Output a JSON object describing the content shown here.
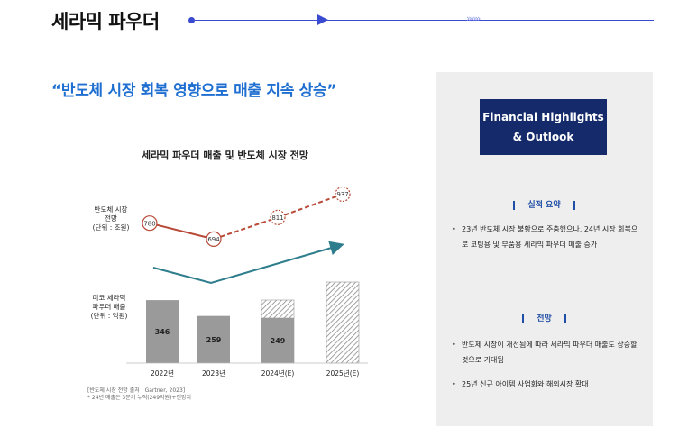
{
  "header": {
    "title": "세라믹 파우더",
    "chevrons": "››››››"
  },
  "headline": "“반도체 시장 회복 영향으로 매출 지속 상승”",
  "chart_title": "세라믹 파우더 매출 및 반도체 시장 전망",
  "axis_labels": {
    "market": [
      "반도체 시장",
      "전망",
      "(단위 : 조원)"
    ],
    "sales": [
      "미코 세라믹",
      "파우더 매출",
      "(단위 : 억원)"
    ]
  },
  "source_note": [
    "[반도체 시장 전망 출처 : Gartner, 2023]",
    "* 24년 매출은 3분기 누적(249억원)+전망치"
  ],
  "chart_data": {
    "type": "bar",
    "categories": [
      "2022년",
      "2023년",
      "2024년(E)",
      "2025년(E)"
    ],
    "series": [
      {
        "name": "미코 세라믹 파우더 매출",
        "unit": "억원",
        "type": "bar",
        "values": [
          346,
          259,
          249,
          null
        ],
        "labels": [
          "346",
          "259",
          "249",
          ""
        ]
      },
      {
        "name": "반도체 시장 전망",
        "unit": "조원",
        "type": "line",
        "values": [
          780,
          694,
          811,
          937
        ],
        "labels": [
          "780",
          "694",
          "811",
          "937"
        ]
      }
    ],
    "notes": "2024년(E) bar has hatched projected portion on top of 249; 2025년(E) bar fully hatched (projection); line dashed from 2023 onward; teal trend arrow rising."
  },
  "panel": {
    "title_line1": "Financial Highlights",
    "title_line2": "& Outlook",
    "section1": "실적 요약",
    "section1_bullets": [
      "23년 반도체 시장 불황으로 주춤했으나, 24년 시장 회복으로 코팅용 및 부품용 세라믹 파우더 매출 증가"
    ],
    "section2": "전망",
    "section2_bullets": [
      "반도체 시장이 개선됨에 따라 세라믹 파우더 매출도 상승할 것으로 기대됨",
      "25년 신규 아이템 사업화와 해외시장 확대"
    ]
  },
  "colors": {
    "accent_blue": "#3a4bd1",
    "headline_blue": "#1f6fd1",
    "line_red": "#b84a38",
    "trend_teal": "#2e7d8c",
    "bar_gray": "#9a9a9a",
    "panel_navy": "#142a6b"
  }
}
